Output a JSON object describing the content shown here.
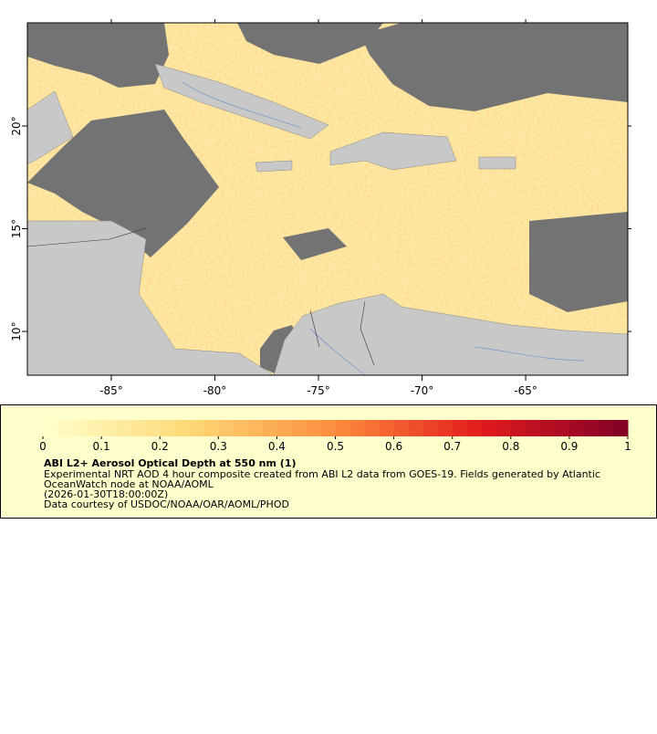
{
  "map": {
    "xlim": [
      -89.05,
      -60.07
    ],
    "ylim": [
      7.87,
      25.02
    ],
    "xticks": [
      {
        "value": -85,
        "label": "-85°"
      },
      {
        "value": -80,
        "label": "-80°"
      },
      {
        "value": -75,
        "label": "-75°"
      },
      {
        "value": -70,
        "label": "-70°"
      },
      {
        "value": -65,
        "label": "-65°"
      }
    ],
    "yticks": [
      {
        "value": 10,
        "label": "10°"
      },
      {
        "value": 15,
        "label": "15°"
      },
      {
        "value": 20,
        "label": "20°"
      }
    ]
  },
  "colorbar": {
    "lim": [
      0,
      1
    ],
    "ticks": [
      0,
      0.1,
      0.2,
      0.3,
      0.4,
      0.5,
      0.6,
      0.7,
      0.8,
      0.9,
      1
    ]
  },
  "legend": {
    "title": "ABI L2+ Aerosol Optical Depth at 550 nm (1)",
    "lines": [
      "Experimental NRT AOD 4 hour composite created from ABI L2 data from GOES-19. Fields generated by Atlantic",
      "OceanWatch node at NOAA/AOML",
      "(2026-01-30T18:00:00Z)",
      "Data courtesy of USDOC/NOAA/OAR/AOML/PHOD"
    ]
  }
}
